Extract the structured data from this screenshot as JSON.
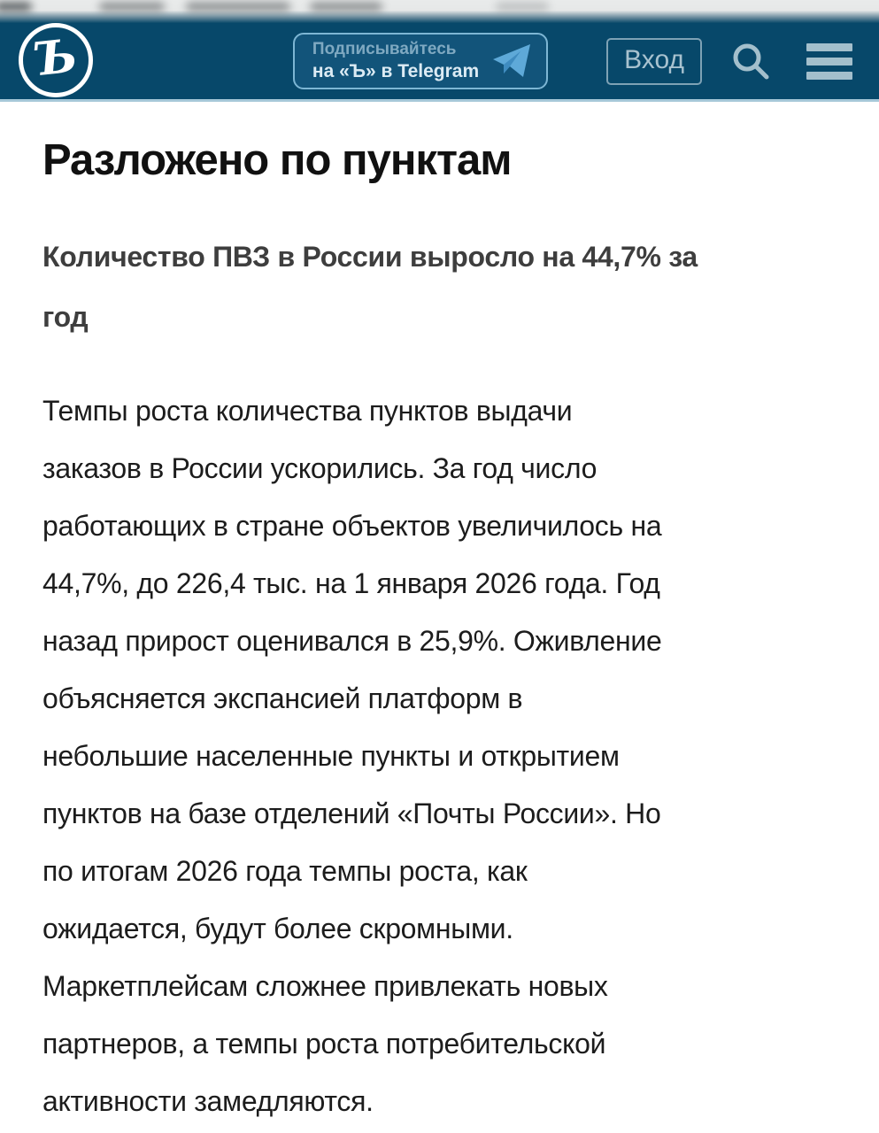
{
  "header": {
    "logo_glyph": "Ъ",
    "telegram_button": {
      "line1": "Подписывайтесь",
      "line2": "на «Ъ» в Telegram"
    },
    "login_label": "Вход"
  },
  "icons": {
    "logo": "kommersant-b-logo",
    "telegram": "telegram-plane-icon",
    "search": "search-icon",
    "menu": "hamburger-menu-icon"
  },
  "article": {
    "title": "Разложено по пунктам",
    "subtitle_lines": [
      "Количество ПВЗ в России выросло на 44,7% за",
      "год"
    ],
    "body_lines": [
      "Темпы роста количества пунктов выдачи",
      "заказов в России ускорились. За год число",
      "работающих в стране объектов увеличилось на",
      "44,7%, до 226,4 тыс. на 1 января 2026 года. Год",
      "назад прирост оценивался в 25,9%. Оживление",
      "объясняется экспансией платформ в",
      "небольшие населенные пункты и открытием",
      "пунктов на базе отделений «Почты России». Но",
      "по итогам 2026 года темпы роста, как",
      "ожидается, будут более скромными.",
      "Маркетплейсам сложнее привлекать новых",
      "партнеров, а темпы роста потребительской",
      "активности замедляются."
    ]
  },
  "colors": {
    "header_bg": "#07486a",
    "header_border": "#a6c8d8",
    "accent_light": "#a8c2cf",
    "telegram_blue": "#5ea9d8",
    "title_text": "#111111",
    "subtitle_text": "#3e3e3e",
    "body_text": "#1c1c1c",
    "page_bg": "#ffffff"
  }
}
